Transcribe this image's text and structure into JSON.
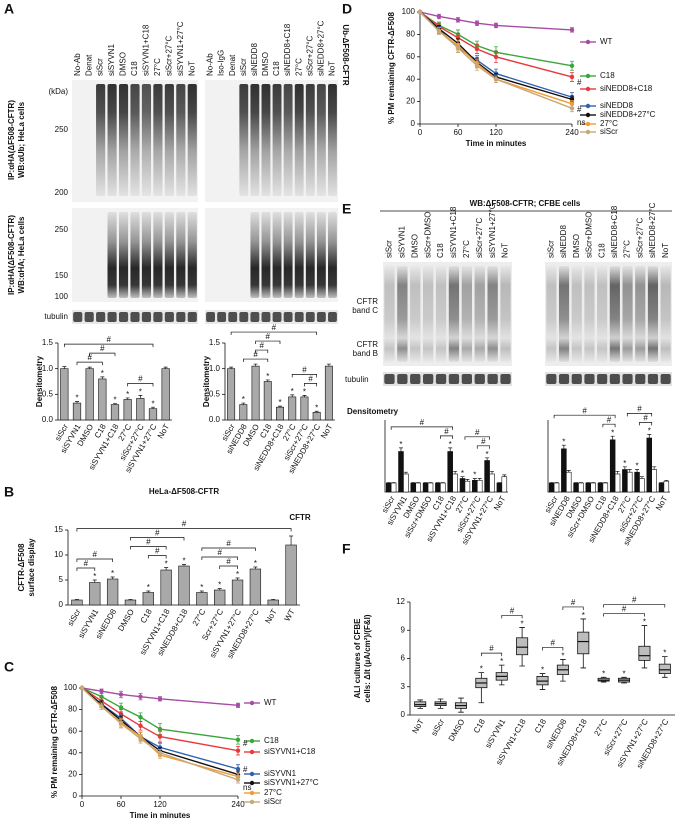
{
  "panel_labels": [
    "A",
    "B",
    "C",
    "D",
    "E",
    "F"
  ],
  "blot_a": {
    "left_lanes": [
      "No-Ab",
      "Denat",
      "siScr",
      "siSYVN1",
      "DMSO",
      "C18",
      "siSYVN1+C18",
      "27°C",
      "siScr+27°C",
      "siSYVN1+27°C",
      "NoT"
    ],
    "right_lanes": [
      "No-Ab",
      "Iso-IgG",
      "Denat",
      "siScr",
      "siNEDD8",
      "DMSO",
      "C18",
      "siNEDD8+C18",
      "27°C",
      "siScr+27°C",
      "siNEDD8+27°C",
      "NoT"
    ],
    "kda_unit": "(kDa)",
    "upper_kda": [
      250,
      200
    ],
    "lower_kda": [
      250,
      150,
      100
    ],
    "upper_label": [
      "IP:αHA(ΔF508-CFTR)",
      "WB:αUb; HeLa cells"
    ],
    "lower_label": [
      "IP:αHA(ΔF508-CFTR)",
      "WB:αHA; HeLa cells"
    ],
    "loading": "tubulin",
    "side_label": "Ub-ΔF508-CFTR"
  },
  "blot_e": {
    "title": "WB:ΔF508-CFTR; CFBE cells",
    "left_lanes": [
      "siScr",
      "siSYVN1",
      "DMSO",
      "siScr+DMSO",
      "C18",
      "siSYVN1+C18",
      "27°C",
      "siScr+27°C",
      "siSYVN1+27°C",
      "NoT"
    ],
    "right_lanes": [
      "siScr",
      "siNEDD8",
      "DMSO",
      "siScr+DMSO",
      "C18",
      "siNEDD8+C18",
      "27°C",
      "siScr+27°C",
      "siNEDD8+27°C",
      "NoT"
    ],
    "band_c": [
      "CFTR",
      "band C"
    ],
    "band_b": [
      "CFTR",
      "band B"
    ],
    "loading": "tubulin"
  },
  "chart_data": [
    {
      "type": "bar",
      "ylabel": [
        "Densitometry"
      ],
      "categories": [
        "siScr",
        "siSYVN1",
        "DMSO",
        "C18",
        "siSYVN1+C18",
        "27°C",
        "siScr+27°C",
        "siSYVN1+27°C",
        "NoT"
      ],
      "series": [
        {
          "color": "#a9a9a9",
          "values": [
            1.0,
            0.33,
            1.0,
            0.8,
            0.3,
            0.4,
            0.42,
            0.22,
            1.0
          ],
          "errors": [
            0.04,
            0.03,
            0.03,
            0.04,
            0.02,
            0.03,
            0.06,
            0.03,
            0.03
          ],
          "stars": [
            null,
            "*",
            null,
            "*",
            "*",
            "*",
            "*",
            "*",
            null
          ]
        }
      ],
      "ylim": [
        0,
        1.5
      ],
      "yticks": [
        {
          "value": 0,
          "label": "0.0"
        },
        {
          "value": 0.5,
          "label": "0.5"
        },
        {
          "value": 1,
          "label": "1.0"
        },
        {
          "value": 1.5,
          "label": "1.5"
        }
      ],
      "brackets": [
        {
          "label": "#",
          "from": 1,
          "to": 3
        },
        {
          "label": "#",
          "from": 2,
          "to": 4
        },
        {
          "label": "#",
          "from": 5,
          "to": 7
        },
        {
          "label": "#",
          "from": 0,
          "to": 7
        }
      ]
    },
    {
      "type": "bar",
      "ylabel": [
        "Densitometry"
      ],
      "categories": [
        "siScr",
        "siNEDD8",
        "DMSO",
        "C18",
        "siNEDD8+C18",
        "27°C",
        "siScr+27°C",
        "siNEDD8+27°C",
        "NoT"
      ],
      "series": [
        {
          "color": "#a9a9a9",
          "values": [
            1.0,
            0.3,
            1.05,
            0.75,
            0.25,
            0.45,
            0.45,
            0.15,
            1.05
          ],
          "errors": [
            0.03,
            0.03,
            0.04,
            0.03,
            0.02,
            0.04,
            0.03,
            0.02,
            0.04
          ],
          "stars": [
            null,
            "*",
            null,
            "*",
            "*",
            "*",
            "*",
            "*",
            null
          ]
        }
      ],
      "ylim": [
        0,
        1.5
      ],
      "yticks": [
        {
          "value": 0,
          "label": "0.0"
        },
        {
          "value": 0.5,
          "label": "0.5"
        },
        {
          "value": 1,
          "label": "1.0"
        },
        {
          "value": 1.5,
          "label": "1.5"
        }
      ],
      "brackets": [
        {
          "label": "#",
          "from": 1,
          "to": 3
        },
        {
          "label": "#",
          "from": 2,
          "to": 3
        },
        {
          "label": "#",
          "from": 2,
          "to": 4
        },
        {
          "label": "#",
          "from": 6,
          "to": 7
        },
        {
          "label": "#",
          "from": 5,
          "to": 7
        },
        {
          "label": "#",
          "from": 0,
          "to": 7
        }
      ]
    },
    {
      "type": "bar",
      "title": "HeLa-ΔF508-CFTR",
      "ylabel": [
        "CFTR-ΔF508",
        "surface display"
      ],
      "annotation": "CFTR",
      "categories": [
        "siScr",
        "siSYVN1",
        "siNEDD8",
        "DMSO",
        "C18",
        "siSYVN1+C18",
        "siNEDD8+C18",
        "27°C",
        "Scr+27°C",
        "siSYVN1+27°C",
        "siNEDD8+27°C",
        "NoT",
        "WT"
      ],
      "series": [
        {
          "color": "#a9a9a9",
          "values": [
            1,
            4.5,
            5.2,
            1,
            2.5,
            7,
            7.8,
            2.5,
            3,
            5,
            7.2,
            1,
            12
          ],
          "errors": [
            0.1,
            0.5,
            0.4,
            0.1,
            0.3,
            0.5,
            0.3,
            0.3,
            0.3,
            0.4,
            0.4,
            0.1,
            1.8
          ],
          "stars": [
            null,
            "*",
            "*",
            null,
            "*",
            "*",
            "*",
            "*",
            "*",
            "*",
            "*",
            null,
            null
          ]
        }
      ],
      "ylim": [
        0,
        15
      ],
      "yticks": [
        0,
        5,
        10,
        15
      ],
      "brackets": [
        {
          "label": "#",
          "from": 0,
          "to": 1
        },
        {
          "label": "#",
          "from": 0,
          "to": 2
        },
        {
          "label": "#",
          "from": 4,
          "to": 5
        },
        {
          "label": "#",
          "from": 3,
          "to": 5
        },
        {
          "label": "#",
          "from": 3,
          "to": 6
        },
        {
          "label": "#",
          "from": 8,
          "to": 9
        },
        {
          "label": "#",
          "from": 7,
          "to": 9
        },
        {
          "label": "#",
          "from": 7,
          "to": 10
        },
        {
          "label": "#",
          "from": 0,
          "to": 12
        }
      ]
    },
    {
      "type": "line",
      "xlabel": "Time in minutes",
      "ylabel": [
        "% PM remaining CFTR-ΔF508"
      ],
      "x": [
        0,
        30,
        60,
        90,
        120,
        240
      ],
      "xlim": [
        0,
        240
      ],
      "xticks": [
        0,
        60,
        120,
        240
      ],
      "ylim": [
        0,
        100
      ],
      "yticks": [
        0,
        20,
        40,
        60,
        80,
        100
      ],
      "annotations": [
        "#",
        "#",
        "ns"
      ],
      "series": [
        {
          "name": "WT",
          "color": "#a64ca6",
          "values": [
            100,
            97,
            94,
            92,
            90,
            84
          ],
          "errors": [
            0,
            2,
            3,
            3,
            2,
            2
          ]
        },
        {
          "name": "C18",
          "color": "#3aa63a",
          "values": [
            100,
            92,
            82,
            73,
            62,
            52
          ],
          "errors": [
            0,
            3,
            4,
            4,
            5,
            4
          ]
        },
        {
          "name": "siSYVN1+C18",
          "color": "#e8383d",
          "values": [
            100,
            88,
            76,
            65,
            55,
            42
          ],
          "errors": [
            0,
            3,
            4,
            4,
            5,
            4
          ]
        },
        {
          "name": "siSYVN1",
          "color": "#3060b0",
          "values": [
            100,
            85,
            72,
            55,
            45,
            25
          ],
          "errors": [
            0,
            3,
            4,
            4,
            4,
            4
          ]
        },
        {
          "name": "siSYVN1+27°C",
          "color": "#111111",
          "values": [
            100,
            85,
            70,
            55,
            42,
            20
          ],
          "errors": [
            0,
            3,
            4,
            4,
            3,
            3
          ]
        },
        {
          "name": "27°C",
          "color": "#f29b30",
          "values": [
            100,
            83,
            68,
            55,
            38,
            18
          ],
          "errors": [
            0,
            3,
            4,
            4,
            3,
            3
          ]
        },
        {
          "name": "siScr",
          "color": "#c8a878",
          "values": [
            100,
            83,
            67,
            53,
            40,
            15
          ],
          "errors": [
            0,
            3,
            4,
            4,
            3,
            3
          ]
        }
      ]
    },
    {
      "type": "line",
      "xlabel": "Time in minutes",
      "ylabel": [
        "% PM remaining CFTR-ΔF508"
      ],
      "x": [
        0,
        30,
        60,
        90,
        120,
        240
      ],
      "xlim": [
        0,
        240
      ],
      "xticks": [
        0,
        60,
        120,
        240
      ],
      "ylim": [
        0,
        100
      ],
      "yticks": [
        0,
        20,
        40,
        60,
        80,
        100
      ],
      "annotations": [
        "#",
        "#",
        "ns"
      ],
      "series": [
        {
          "name": "WT",
          "color": "#a64ca6",
          "values": [
            100,
            96,
            93,
            90,
            88,
            84
          ],
          "errors": [
            0,
            2,
            2,
            2,
            2,
            2
          ]
        },
        {
          "name": "C18",
          "color": "#3aa63a",
          "values": [
            100,
            88,
            80,
            70,
            64,
            52
          ],
          "errors": [
            0,
            3,
            4,
            4,
            5,
            4
          ]
        },
        {
          "name": "siNEDD8+C18",
          "color": "#e8383d",
          "values": [
            100,
            87,
            77,
            67,
            60,
            42
          ],
          "errors": [
            0,
            3,
            4,
            4,
            5,
            4
          ]
        },
        {
          "name": "siNEDD8",
          "color": "#3060b0",
          "values": [
            100,
            84,
            68,
            57,
            45,
            24
          ],
          "errors": [
            0,
            3,
            4,
            4,
            4,
            4
          ]
        },
        {
          "name": "siNEDD8+27°C",
          "color": "#111111",
          "values": [
            100,
            85,
            72,
            55,
            42,
            22
          ],
          "errors": [
            0,
            3,
            4,
            4,
            3,
            3
          ]
        },
        {
          "name": "27°C",
          "color": "#f29b30",
          "values": [
            100,
            83,
            70,
            54,
            40,
            18
          ],
          "errors": [
            0,
            3,
            4,
            4,
            3,
            3
          ]
        },
        {
          "name": "siScr",
          "color": "#c8a878",
          "values": [
            100,
            83,
            68,
            52,
            40,
            14
          ],
          "errors": [
            0,
            3,
            4,
            4,
            3,
            3
          ]
        }
      ]
    },
    {
      "type": "bar",
      "ylabel": [
        "Densitometry"
      ],
      "categories": [
        "siScr",
        "siSYVN1",
        "DMSO",
        "siScr+DMSO",
        "C18",
        "siSYVN1+C18",
        "27°C",
        "siScr+27°C",
        "siSYVN1+27°C",
        "NoT"
      ],
      "series": [
        {
          "color": "#111111",
          "values": [
            1,
            4.5,
            1,
            1,
            1,
            4.5,
            1.5,
            1.3,
            3.5,
            1
          ],
          "errors": [
            0.05,
            0.4,
            0.05,
            0.05,
            0.05,
            0.4,
            0.2,
            0.2,
            0.3,
            0.05
          ],
          "stars": [
            null,
            "*",
            null,
            null,
            null,
            "*",
            "*",
            "*",
            "*",
            null
          ]
        },
        {
          "color": "#ffffff",
          "values": [
            1,
            2,
            1,
            1,
            1,
            2,
            1.2,
            1.3,
            2,
            1.7
          ],
          "errors": [
            0.05,
            0.2,
            0.05,
            0.05,
            0.05,
            0.3,
            0.2,
            0.2,
            0.3,
            0.2
          ]
        }
      ],
      "ylim": [
        0,
        8
      ],
      "brackets": [
        {
          "label": "#",
          "from": 4,
          "to": 5
        },
        {
          "label": "#",
          "from": 0,
          "to": 5
        },
        {
          "label": "#",
          "from": 7,
          "to": 8
        },
        {
          "label": "#",
          "from": 6,
          "to": 8
        }
      ]
    },
    {
      "type": "bar",
      "categories": [
        "siScr",
        "siNEDD8",
        "DMSO",
        "siScr+DMSO",
        "C18",
        "siNEDD8+C18",
        "27°C",
        "siScr+27°C",
        "siNEDD8+27°C",
        "NoT"
      ],
      "series": [
        {
          "color": "#111111",
          "values": [
            1,
            4.8,
            1,
            1,
            1,
            5.8,
            2.5,
            2.2,
            6,
            1
          ],
          "errors": [
            0.05,
            0.4,
            0.05,
            0.05,
            0.05,
            0.4,
            0.3,
            0.3,
            0.4,
            0.05
          ],
          "stars": [
            null,
            "*",
            null,
            null,
            null,
            "*",
            "*",
            "*",
            "*",
            null
          ]
        },
        {
          "color": "#ffffff",
          "values": [
            1,
            2.2,
            1,
            1,
            1,
            2,
            2.2,
            1.5,
            2.5,
            1.2
          ],
          "errors": [
            0.05,
            0.2,
            0.05,
            0.05,
            0.05,
            0.3,
            0.3,
            0.2,
            0.3,
            0.1
          ]
        }
      ],
      "ylim": [
        0,
        8
      ],
      "brackets": [
        {
          "label": "#",
          "from": 4,
          "to": 5
        },
        {
          "label": "#",
          "from": 0,
          "to": 5
        },
        {
          "label": "#",
          "from": 7,
          "to": 8
        },
        {
          "label": "#",
          "from": 6,
          "to": 8
        }
      ]
    },
    {
      "type": "box",
      "ylabel": [
        "ALI cultures of CFBE",
        "cells: ΔIt (µA/cm²)/(F&I)"
      ],
      "color": "#bdbdbd",
      "categories": [
        "NoT",
        "siScr",
        "DMSO",
        "C18",
        "siSYVN1",
        "siSYVN1+C18",
        "C18",
        "siNEDD8",
        "siNEDD8+C18",
        "27°C",
        "siScr+27°C",
        "siSYVN1+27°C",
        "siNEDD8+27°C"
      ],
      "values": [
        [
          0.7,
          0.9,
          1.1,
          1.4,
          1.6
        ],
        [
          0.7,
          1.0,
          1.2,
          1.4,
          1.7
        ],
        [
          0.3,
          0.7,
          1.0,
          1.3,
          1.8
        ],
        [
          1.3,
          2.9,
          3.4,
          3.9,
          4.5
        ],
        [
          3.2,
          3.7,
          4.1,
          4.5,
          5.3
        ],
        [
          5.2,
          6.4,
          7.2,
          8.2,
          9.3
        ],
        [
          2.7,
          3.2,
          3.6,
          4.1,
          4.4
        ],
        [
          3.6,
          4.3,
          4.8,
          5.3,
          5.9
        ],
        [
          5.0,
          6.5,
          7.8,
          8.8,
          10.2
        ],
        [
          3.5,
          3.6,
          3.7,
          3.9,
          4.0
        ],
        [
          3.4,
          3.5,
          3.7,
          3.9,
          4.0
        ],
        [
          5.0,
          5.8,
          6.3,
          7.3,
          9.5
        ],
        [
          4.0,
          4.4,
          4.8,
          5.4,
          6.2
        ]
      ],
      "stars": [
        null,
        null,
        null,
        "*",
        "*",
        "*",
        "*",
        "*",
        "*",
        "*",
        "*",
        "*",
        "*"
      ],
      "ylim": [
        0,
        12
      ],
      "yticks": [
        0,
        3,
        6,
        9,
        12
      ],
      "brackets": [
        {
          "label": "#",
          "from": 3,
          "to": 4
        },
        {
          "label": "#",
          "from": 4,
          "to": 5
        },
        {
          "label": "#",
          "from": 6,
          "to": 7
        },
        {
          "label": "#",
          "from": 7,
          "to": 8
        },
        {
          "label": "#",
          "from": 9,
          "to": 11
        },
        {
          "label": "#",
          "from": 9,
          "to": 12
        }
      ]
    }
  ]
}
